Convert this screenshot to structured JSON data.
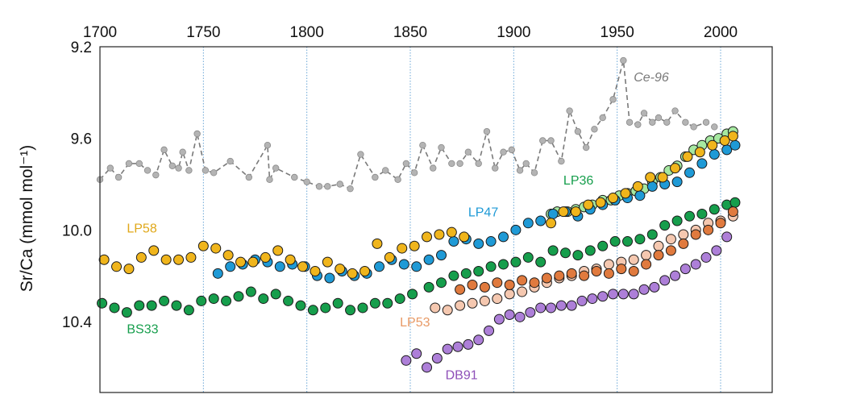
{
  "chart_data": {
    "type": "scatter",
    "title": "",
    "xlabel": "",
    "ylabel": "Sr/Ca (mmol mol⁻¹)",
    "xlim": [
      1700,
      2025
    ],
    "ylim": [
      9.2,
      10.9
    ],
    "y_inverted": true,
    "x_axis_position": "top",
    "xticks": [
      1700,
      1750,
      1800,
      1850,
      1900,
      1950,
      2000
    ],
    "xtick_labels": [
      "1700",
      "1750",
      "1800",
      "1850",
      "1900",
      "1950",
      "2000"
    ],
    "yticks": [
      9.2,
      9.6,
      10.0,
      10.4
    ],
    "ytick_labels": [
      "9.2",
      "9.6",
      "10.0",
      "10.4"
    ],
    "grid": "vertical dotted lines at x ticks",
    "legend": "inline labels next to series",
    "series": [
      {
        "name": "Ce-96",
        "color": "#b4b4b4",
        "style": "dashed-line-with-points",
        "x": [
          1700,
          1705,
          1709,
          1714,
          1719,
          1723,
          1727,
          1731,
          1735,
          1738,
          1740,
          1743,
          1747,
          1751,
          1755,
          1763,
          1772,
          1781,
          1782,
          1785,
          1794,
          1800,
          1806,
          1810,
          1816,
          1821,
          1826,
          1833,
          1838,
          1844,
          1848,
          1852,
          1856,
          1861,
          1865,
          1870,
          1874,
          1878,
          1883,
          1887,
          1891,
          1895,
          1899,
          1903,
          1906,
          1910,
          1914,
          1918,
          1923,
          1927,
          1931,
          1935,
          1939,
          1943,
          1948,
          1953,
          1956,
          1960,
          1963,
          1967,
          1970,
          1974,
          1978,
          1983,
          1987,
          1993,
          1997
        ],
        "y": [
          9.78,
          9.73,
          9.77,
          9.71,
          9.71,
          9.74,
          9.76,
          9.65,
          9.72,
          9.73,
          9.66,
          9.74,
          9.58,
          9.74,
          9.75,
          9.7,
          9.77,
          9.63,
          9.78,
          9.73,
          9.77,
          9.79,
          9.81,
          9.81,
          9.8,
          9.82,
          9.67,
          9.77,
          9.74,
          9.78,
          9.71,
          9.75,
          9.63,
          9.73,
          9.64,
          9.71,
          9.71,
          9.66,
          9.71,
          9.57,
          9.73,
          9.66,
          9.65,
          9.74,
          9.71,
          9.75,
          9.61,
          9.61,
          9.7,
          9.48,
          9.57,
          9.64,
          9.56,
          9.51,
          9.43,
          9.26,
          9.53,
          9.54,
          9.49,
          9.53,
          9.51,
          9.53,
          9.48,
          9.53,
          9.55,
          9.53,
          9.55
        ]
      },
      {
        "name": "LP36",
        "color": "#a6e8a0",
        "style": "points",
        "x": [
          1918,
          1921,
          1926,
          1930,
          1934,
          1938,
          1943,
          1947,
          1951,
          1955,
          1959,
          1963,
          1967,
          1971,
          1975,
          1979,
          1983,
          1987,
          1991,
          1995,
          1999,
          2003,
          2006
        ],
        "y": [
          9.93,
          9.92,
          9.92,
          9.91,
          9.9,
          9.89,
          9.87,
          9.87,
          9.85,
          9.84,
          9.83,
          9.82,
          9.79,
          9.77,
          9.74,
          9.72,
          9.68,
          9.65,
          9.63,
          9.61,
          9.6,
          9.58,
          9.57
        ]
      },
      {
        "name": "LP47",
        "color": "#1f9ad6",
        "style": "points",
        "x": [
          1757,
          1763,
          1769,
          1775,
          1781,
          1787,
          1793,
          1799,
          1805,
          1811,
          1817,
          1823,
          1829,
          1835,
          1841,
          1847,
          1853,
          1859,
          1865,
          1871,
          1877,
          1883,
          1889,
          1895,
          1901,
          1907,
          1913,
          1919,
          1925,
          1931,
          1937,
          1943,
          1949,
          1955,
          1961,
          1967,
          1973,
          1979,
          1985,
          1991,
          1997,
          2003,
          2007
        ],
        "y": [
          10.19,
          10.16,
          10.15,
          10.13,
          10.14,
          10.16,
          10.15,
          10.16,
          10.2,
          10.21,
          10.18,
          10.2,
          10.19,
          10.16,
          10.13,
          10.15,
          10.16,
          10.13,
          10.11,
          10.05,
          10.04,
          10.06,
          10.05,
          10.03,
          10.0,
          9.97,
          9.96,
          9.93,
          9.92,
          9.94,
          9.91,
          9.89,
          9.87,
          9.86,
          9.85,
          9.81,
          9.8,
          9.79,
          9.75,
          9.71,
          9.67,
          9.65,
          9.63
        ]
      },
      {
        "name": "LP58",
        "color": "#f0b51c",
        "style": "points",
        "x": [
          1702,
          1708,
          1714,
          1720,
          1726,
          1732,
          1738,
          1744,
          1750,
          1756,
          1762,
          1768,
          1774,
          1780,
          1786,
          1792,
          1798,
          1804,
          1810,
          1816,
          1822,
          1828,
          1834,
          1840,
          1846,
          1852,
          1858,
          1864,
          1870,
          1876,
          1918,
          1924,
          1930,
          1936,
          1942,
          1948,
          1954,
          1960,
          1966,
          1972,
          1978,
          1984,
          1990,
          1996,
          2002,
          2006
        ],
        "y": [
          10.13,
          10.16,
          10.17,
          10.12,
          10.09,
          10.13,
          10.13,
          10.12,
          10.07,
          10.08,
          10.11,
          10.14,
          10.14,
          10.12,
          10.09,
          10.13,
          10.16,
          10.18,
          10.14,
          10.17,
          10.19,
          10.18,
          10.06,
          10.12,
          10.08,
          10.07,
          10.03,
          10.02,
          10.01,
          10.03,
          9.97,
          9.92,
          9.92,
          9.89,
          9.88,
          9.86,
          9.84,
          9.81,
          9.77,
          9.77,
          9.73,
          9.68,
          9.66,
          9.63,
          9.61,
          9.59
        ]
      },
      {
        "name": "BS33",
        "color": "#169e4c",
        "style": "points",
        "x": [
          1701,
          1707,
          1713,
          1719,
          1725,
          1731,
          1737,
          1743,
          1749,
          1755,
          1761,
          1767,
          1773,
          1779,
          1785,
          1791,
          1797,
          1803,
          1809,
          1815,
          1821,
          1827,
          1833,
          1839,
          1845,
          1851,
          1859,
          1865,
          1871,
          1877,
          1883,
          1889,
          1895,
          1901,
          1907,
          1913,
          1919,
          1925,
          1931,
          1937,
          1943,
          1949,
          1955,
          1961,
          1967,
          1973,
          1979,
          1985,
          1991,
          1997,
          2003,
          2007
        ],
        "y": [
          10.32,
          10.34,
          10.36,
          10.33,
          10.33,
          10.31,
          10.33,
          10.35,
          10.31,
          10.3,
          10.31,
          10.29,
          10.27,
          10.3,
          10.28,
          10.31,
          10.33,
          10.35,
          10.34,
          10.32,
          10.35,
          10.34,
          10.32,
          10.32,
          10.3,
          10.28,
          10.25,
          10.23,
          10.2,
          10.19,
          10.18,
          10.16,
          10.15,
          10.14,
          10.12,
          10.14,
          10.09,
          10.1,
          10.11,
          10.09,
          10.07,
          10.05,
          10.05,
          10.04,
          10.02,
          9.98,
          9.96,
          9.94,
          9.93,
          9.91,
          9.89,
          9.88
        ]
      },
      {
        "name": "LP53",
        "color": "#f5c8b0",
        "style": "points",
        "x": [
          1862,
          1868,
          1874,
          1880,
          1886,
          1892,
          1898,
          1904,
          1910,
          1916,
          1922,
          1928,
          1934,
          1940,
          1946,
          1952,
          1958,
          1964,
          1970,
          1976,
          1982,
          1988,
          1994,
          2000,
          2006
        ],
        "y": [
          10.34,
          10.35,
          10.33,
          10.32,
          10.31,
          10.3,
          10.28,
          10.27,
          10.25,
          10.23,
          10.21,
          10.2,
          10.18,
          10.17,
          10.15,
          10.14,
          10.13,
          10.11,
          10.07,
          10.04,
          10.02,
          10.0,
          9.97,
          9.96,
          9.94
        ]
      },
      {
        "name": "LP53-orange",
        "color": "#e07a3e",
        "style": "points",
        "x": [
          1874,
          1880,
          1886,
          1892,
          1898,
          1904,
          1910,
          1916,
          1922,
          1928,
          1934,
          1940,
          1946,
          1952,
          1958,
          1964,
          1970,
          1976,
          1982,
          1988,
          1994,
          2000,
          2006
        ],
        "y": [
          10.26,
          10.24,
          10.25,
          10.23,
          10.24,
          10.22,
          10.23,
          10.21,
          10.2,
          10.19,
          10.2,
          10.18,
          10.19,
          10.17,
          10.18,
          10.15,
          10.11,
          10.09,
          10.06,
          10.02,
          10.0,
          9.97,
          9.92
        ]
      },
      {
        "name": "DB91",
        "color": "#ad7fd8",
        "style": "points",
        "x": [
          1848,
          1853,
          1858,
          1863,
          1868,
          1873,
          1878,
          1883,
          1888,
          1893,
          1898,
          1903,
          1908,
          1913,
          1918,
          1923,
          1928,
          1933,
          1938,
          1943,
          1948,
          1953,
          1958,
          1963,
          1968,
          1973,
          1978,
          1983,
          1988,
          1993,
          1998,
          2003
        ],
        "y": [
          10.57,
          10.54,
          10.6,
          10.56,
          10.52,
          10.51,
          10.5,
          10.48,
          10.44,
          10.39,
          10.37,
          10.38,
          10.36,
          10.34,
          10.34,
          10.33,
          10.33,
          10.31,
          10.3,
          10.29,
          10.28,
          10.28,
          10.28,
          10.26,
          10.25,
          10.22,
          10.2,
          10.17,
          10.15,
          10.12,
          10.09,
          10.03
        ]
      }
    ],
    "annotations": [
      {
        "text": "Ce-96",
        "color": "#7a7a7a",
        "x": 1958,
        "y": 9.33,
        "italic": true
      },
      {
        "text": "LP36",
        "color": "#169e4c",
        "x": 1924,
        "y": 9.78,
        "italic": false
      },
      {
        "text": "LP47",
        "color": "#1f9ad6",
        "x": 1878,
        "y": 9.92,
        "italic": false
      },
      {
        "text": "LP58",
        "color": "#e0a81a",
        "x": 1713,
        "y": 9.99,
        "italic": false
      },
      {
        "text": "BS33",
        "color": "#169e4c",
        "x": 1713,
        "y": 10.43,
        "italic": false
      },
      {
        "text": "LP53",
        "color": "#e89a66",
        "x": 1845,
        "y": 10.4,
        "italic": false
      },
      {
        "text": "DB91",
        "color": "#8e4fb8",
        "x": 1867,
        "y": 10.63,
        "italic": false
      }
    ]
  }
}
